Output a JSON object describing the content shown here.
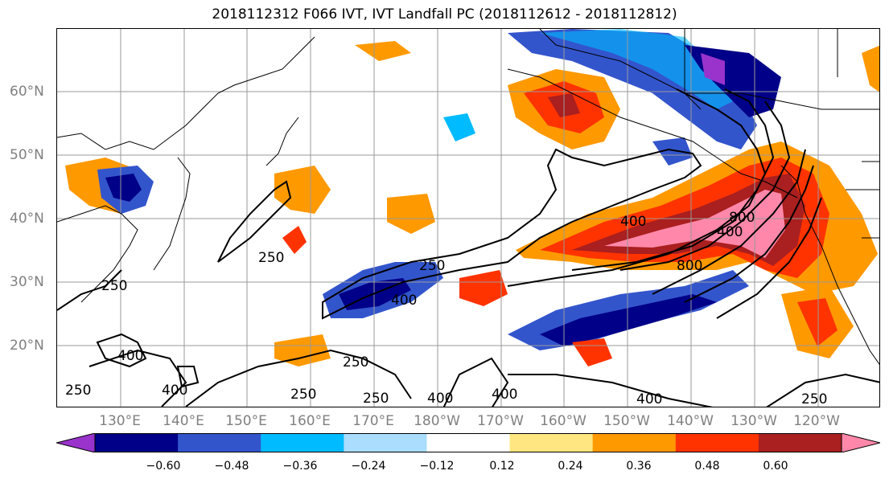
{
  "title": "2018112312 F066 IVT, IVT Landfall PC (2018112612 - 2018112812)",
  "lat_labels": [
    "60°N",
    "50°N",
    "40°N",
    "30°N",
    "20°N"
  ],
  "lon_labels": [
    "130°E",
    "140°E",
    "150°E",
    "160°E",
    "170°E",
    "180°W",
    "170°W",
    "160°W",
    "150°W",
    "140°W",
    "130°W",
    "120°W"
  ],
  "colorbar": {
    "colors": [
      "#9933cc",
      "#000088",
      "#3355cc",
      "#00bbff",
      "#aaddff",
      "#ffffff",
      "#ffe680",
      "#ff9900",
      "#ff3300",
      "#aa1f1f",
      "#ff88aa"
    ],
    "ticks": [
      "−0.60",
      "−0.48",
      "−0.36",
      "−0.24",
      "−0.12",
      "0.12",
      "0.24",
      "0.36",
      "0.48",
      "0.60"
    ]
  },
  "contour_labels": [
    "250",
    "400",
    "250",
    "400",
    "400",
    "800",
    "800",
    "250",
    "400",
    "400",
    "250",
    "250",
    "250",
    "400",
    "400",
    "400",
    "250",
    "250"
  ]
}
